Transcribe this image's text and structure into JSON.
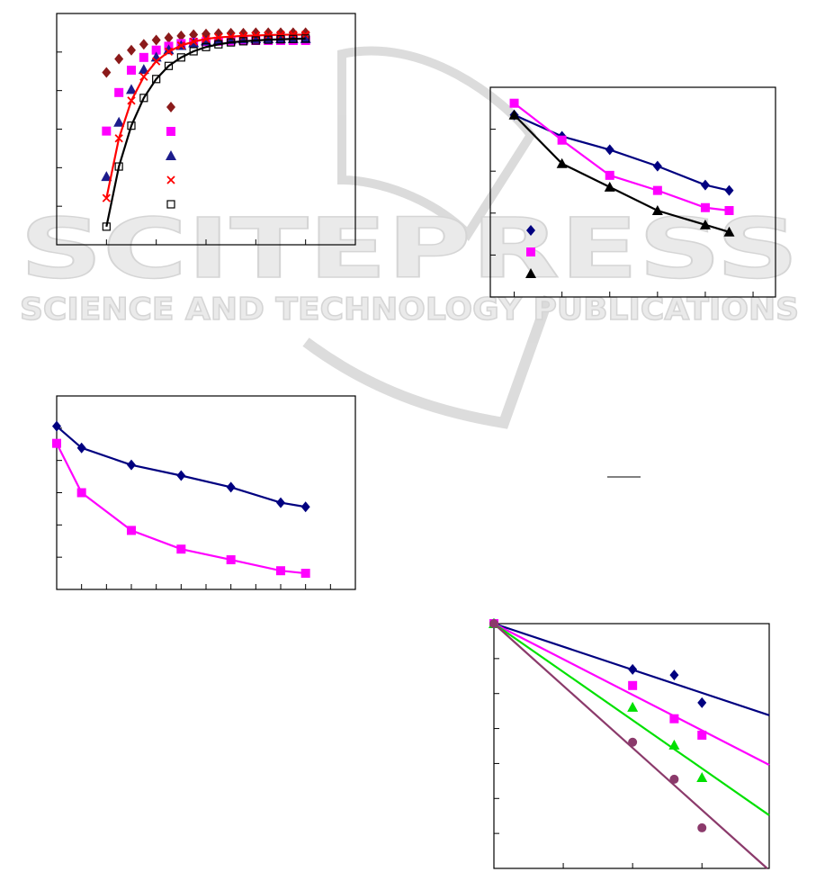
{
  "watermark": {
    "brand": "SCITEPRESS",
    "tagline": "SCIENCE AND TECHNOLOGY PUBLICATIONS"
  },
  "figures": [
    {
      "type": "scatter",
      "xlim": [
        0,
        6
      ],
      "ylim": [
        0,
        6
      ],
      "xticks": [
        1,
        2,
        3,
        4,
        5
      ],
      "yticks": [
        1,
        2,
        3,
        4,
        5
      ],
      "legend": true,
      "x": [
        1,
        1.25,
        1.5,
        1.75,
        2,
        2.25,
        2.5,
        2.75,
        3,
        3.25,
        3.5,
        3.75,
        4,
        4.25,
        4.5,
        4.75,
        5
      ],
      "series": [
        {
          "color": "#8b1a1a",
          "marker": "diamond",
          "line": false,
          "values": [
            4.47,
            4.82,
            5.05,
            5.2,
            5.31,
            5.37,
            5.42,
            5.45,
            5.47,
            5.48,
            5.49,
            5.49,
            5.5,
            5.5,
            5.5,
            5.5,
            5.5
          ]
        },
        {
          "color": "#ff00ff",
          "marker": "square",
          "line": false,
          "values": [
            2.95,
            3.95,
            4.53,
            4.86,
            5.05,
            5.15,
            5.22,
            5.25,
            5.27,
            5.28,
            5.29,
            5.3,
            5.3,
            5.3,
            5.3,
            5.3,
            5.3
          ]
        },
        {
          "color": "#1c1c8c",
          "marker": "triangle",
          "line": false,
          "values": [
            1.77,
            3.18,
            4.03,
            4.55,
            4.87,
            5.06,
            5.17,
            5.24,
            5.29,
            5.31,
            5.33,
            5.34,
            5.35,
            5.35,
            5.35,
            5.35,
            5.35
          ]
        },
        {
          "color": "#ff0000",
          "marker": "cross",
          "line": true,
          "values": [
            1.21,
            2.76,
            3.74,
            4.36,
            4.76,
            5.01,
            5.17,
            5.27,
            5.34,
            5.38,
            5.4,
            5.42,
            5.43,
            5.44,
            5.45,
            5.45,
            5.45
          ]
        },
        {
          "color": "#000000",
          "marker": "open-square",
          "line": true,
          "values": [
            0.47,
            2.03,
            3.09,
            3.81,
            4.3,
            4.64,
            4.86,
            5.02,
            5.13,
            5.2,
            5.25,
            5.28,
            5.3,
            5.32,
            5.33,
            5.34,
            5.35
          ]
        }
      ]
    },
    {
      "type": "line",
      "xlim": [
        0.5,
        6.47
      ],
      "ylim": [
        0,
        5
      ],
      "xticks": [
        1,
        2,
        3,
        4,
        5,
        6
      ],
      "yticks": [
        1,
        2,
        3,
        4
      ],
      "legend": true,
      "x": [
        1,
        2,
        3,
        4,
        5,
        5.5
      ],
      "series": [
        {
          "color": "#000080",
          "marker": "diamond",
          "line": true,
          "values": [
            4.34,
            3.83,
            3.51,
            3.12,
            2.67,
            2.54
          ]
        },
        {
          "color": "#ff00ff",
          "marker": "square",
          "line": true,
          "values": [
            4.62,
            3.74,
            2.9,
            2.54,
            2.13,
            2.06
          ]
        },
        {
          "color": "#000000",
          "marker": "triangle",
          "line": true,
          "values": [
            4.34,
            3.18,
            2.62,
            2.06,
            1.72,
            1.55
          ]
        }
      ]
    },
    {
      "type": "line",
      "xlim": [
        0,
        12
      ],
      "ylim": [
        0,
        6
      ],
      "xticks": [
        1,
        2,
        3,
        4,
        5,
        6,
        7,
        8,
        9,
        10,
        11
      ],
      "yticks": [
        1,
        2,
        3,
        4,
        5
      ],
      "legend": false,
      "x": [
        0,
        1,
        3,
        5,
        7,
        9,
        10
      ],
      "series": [
        {
          "color": "#000080",
          "marker": "diamond",
          "line": true,
          "values": [
            5.06,
            4.39,
            3.86,
            3.53,
            3.17,
            2.69,
            2.56
          ]
        },
        {
          "color": "#ff00ff",
          "marker": "square",
          "line": true,
          "values": [
            4.53,
            3,
            1.83,
            1.25,
            0.92,
            0.58,
            0.5
          ]
        }
      ]
    },
    {
      "type": "scatter",
      "xlim": [
        0,
        3.97
      ],
      "ylim": [
        -7,
        0
      ],
      "xticks": [
        1,
        2,
        3
      ],
      "yticks": [
        -6,
        -5,
        -4,
        -3,
        -2,
        -1
      ],
      "legend": false,
      "x": [
        0,
        2,
        2.6,
        3
      ],
      "series": [
        {
          "color": "#000080",
          "marker": "diamond",
          "line": false,
          "values": [
            0,
            -1.31,
            -1.47,
            -2.26
          ],
          "fit": {
            "x": [
              0,
              3.97
            ],
            "y": [
              0,
              -2.62
            ]
          }
        },
        {
          "color": "#ff00ff",
          "marker": "square",
          "line": false,
          "values": [
            0,
            -1.77,
            -2.72,
            -3.19
          ],
          "fit": {
            "x": [
              0,
              3.97
            ],
            "y": [
              0,
              -4.04
            ]
          }
        },
        {
          "color": "#00e000",
          "marker": "triangle",
          "line": false,
          "values": [
            0,
            -2.39,
            -3.47,
            -4.4
          ],
          "fit": {
            "x": [
              0,
              3.97
            ],
            "y": [
              0,
              -5.48
            ]
          }
        },
        {
          "color": "#8b3a6b",
          "marker": "circle",
          "line": false,
          "values": [
            0,
            -3.39,
            -4.45,
            -5.84
          ],
          "fit": {
            "x": [
              0,
              3.94
            ],
            "y": [
              0,
              -7
            ]
          }
        }
      ]
    }
  ]
}
